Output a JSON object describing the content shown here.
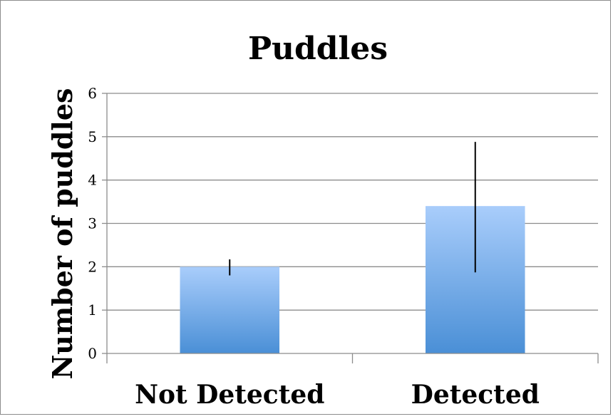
{
  "chart_data": {
    "type": "bar",
    "title": "Puddles",
    "xlabel": "",
    "ylabel": "Number of puddles",
    "categories": [
      "Not Detected",
      "Detected"
    ],
    "values": [
      2.0,
      3.4
    ],
    "error_low": [
      1.8,
      1.87
    ],
    "error_high": [
      2.17,
      4.88
    ],
    "ylim": [
      0,
      6
    ],
    "yticks": [
      "0",
      "1",
      "2",
      "3",
      "4",
      "5",
      "6"
    ],
    "grid": true,
    "legend": "none",
    "bar_color_top": "#a9cdfb",
    "bar_color_bottom": "#4a8fd6"
  }
}
